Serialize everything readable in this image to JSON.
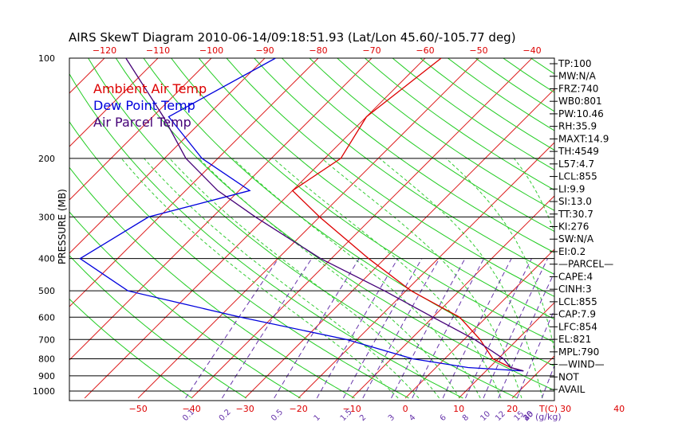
{
  "chart_data": {
    "type": "skewt",
    "title": "AIRS SkewT Diagram 2010-06-14/09:18:51.93 (Lat/Lon 45.60/-105.77 deg)",
    "ylabel": "PRESSURE (MB)",
    "xlabel_unit": "T(C)",
    "mixing_ratio_unit": "(g/kg)",
    "pressure_levels": [
      100,
      200,
      300,
      400,
      500,
      600,
      700,
      800,
      900,
      1000
    ],
    "pressure_range": [
      100,
      1050
    ],
    "bottom_temp_ticks": [
      -50,
      -40,
      -30,
      -20,
      -10,
      0,
      10,
      20,
      30,
      40
    ],
    "top_temp_ticks": [
      -120,
      -110,
      -100,
      -90,
      -80,
      -70,
      -60,
      -50,
      -40
    ],
    "mixing_ratio_ticks": [
      "0.1",
      "0.2",
      "0.5",
      "1",
      "1.5",
      "2",
      "3",
      "4",
      "6",
      "8",
      "10",
      "12",
      "15",
      "20",
      "25",
      "30",
      "40"
    ],
    "legend": [
      {
        "label": "Ambient Air Temp",
        "color": "#dd0000"
      },
      {
        "label": "Dew Point Temp",
        "color": "#0000dd"
      },
      {
        "label": "Air Parcel Temp",
        "color": "#440077"
      }
    ],
    "series": [
      {
        "name": "Ambient Air Temp",
        "color": "#dd0000",
        "points": [
          [
            100,
            -57
          ],
          [
            150,
            -60
          ],
          [
            200,
            -57
          ],
          [
            250,
            -60
          ],
          [
            300,
            -50
          ],
          [
            400,
            -33
          ],
          [
            500,
            -19
          ],
          [
            600,
            -5
          ],
          [
            700,
            3
          ],
          [
            800,
            9
          ],
          [
            850,
            14
          ],
          [
            870,
            17
          ]
        ]
      },
      {
        "name": "Dew Point Temp",
        "color": "#0000dd",
        "points": [
          [
            100,
            -88
          ],
          [
            150,
            -97
          ],
          [
            200,
            -83
          ],
          [
            250,
            -68
          ],
          [
            300,
            -82
          ],
          [
            400,
            -87
          ],
          [
            500,
            -72
          ],
          [
            600,
            -46
          ],
          [
            700,
            -22
          ],
          [
            800,
            -6
          ],
          [
            850,
            6
          ],
          [
            870,
            17
          ]
        ]
      },
      {
        "name": "Air Parcel Temp",
        "color": "#440077",
        "points": [
          [
            100,
            -116
          ],
          [
            150,
            -98
          ],
          [
            200,
            -86
          ],
          [
            250,
            -74
          ],
          [
            300,
            -62
          ],
          [
            400,
            -42
          ],
          [
            500,
            -24
          ],
          [
            600,
            -10
          ],
          [
            700,
            2
          ],
          [
            800,
            11
          ],
          [
            850,
            14
          ],
          [
            870,
            17
          ]
        ]
      }
    ]
  },
  "indices": [
    "TP:100",
    "MW:N/A",
    "FRZ:740",
    "WB0:801",
    "PW:10.46",
    "RH:35.9",
    "MAXT:14.9",
    "TH:4549",
    "L57:4.7",
    "LCL:855",
    "LI:9.9",
    "SI:13.0",
    "TT:30.7",
    "KI:276",
    "SW:N/A",
    "EI:0.2",
    "—PARCEL—",
    "CAPE:4",
    "CINH:3",
    "LCL:855",
    "CAP:7.9",
    "LFC:854",
    "EL:821",
    "MPL:790",
    "—WIND—",
    "NOT",
    "AVAIL"
  ],
  "colors": {
    "isotherm": "#dd2222",
    "dry_adiabat": "#22cc22",
    "moist_adiabat": "#33cc33",
    "mixing_ratio": "#6633aa",
    "isobar": "#000000"
  }
}
